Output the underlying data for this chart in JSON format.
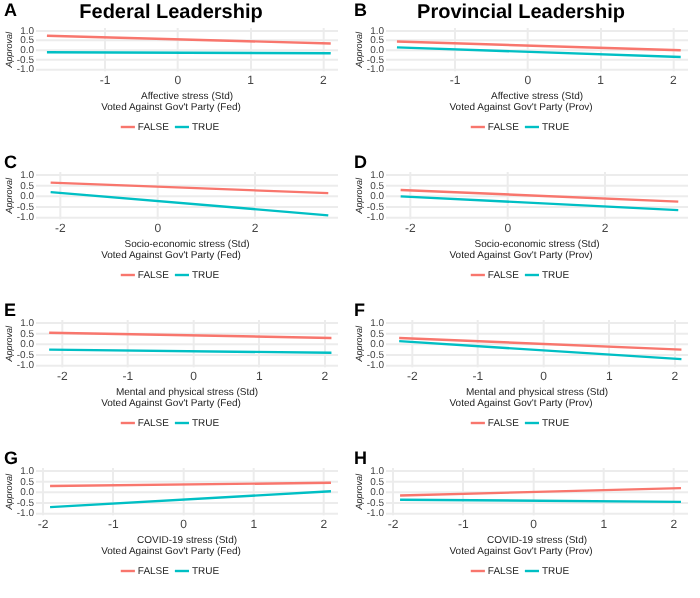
{
  "chart_data": [
    {
      "type": "line",
      "title": "Federal Leadership",
      "annotations": [
        "A"
      ],
      "xlabel": "Affective stress (Std)",
      "ylabel": "Approval",
      "legend_title": "Voted Against Gov't Party (Fed)",
      "legend": "bottom",
      "grid": true,
      "xlim": [
        -1.95,
        2.2
      ],
      "xticks": [
        -1,
        0,
        1,
        2
      ],
      "ylim": [
        -1.1,
        1.15
      ],
      "yticks": [
        {
          "value": -1,
          "label": "-1.0"
        },
        {
          "value": -0.5,
          "label": "-0.5"
        },
        {
          "value": 0,
          "label": "0.0"
        },
        {
          "value": 0.5,
          "label": "0.5"
        },
        {
          "value": 1,
          "label": "1.0"
        }
      ],
      "series": [
        {
          "name": "FALSE",
          "color": "#f8766d",
          "x": [
            -1.8,
            2.1
          ],
          "values": [
            0.75,
            0.35
          ]
        },
        {
          "name": "TRUE",
          "color": "#00bfc4",
          "x": [
            -1.8,
            2.1
          ],
          "values": [
            -0.1,
            -0.15
          ]
        }
      ]
    },
    {
      "type": "line",
      "title": "Provincial Leadership",
      "annotations": [
        "B"
      ],
      "xlabel": "Affective stress (Std)",
      "ylabel": "Approval",
      "legend_title": "Voted Against Gov't Party (Prov)",
      "legend": "bottom",
      "grid": true,
      "xlim": [
        -1.95,
        2.2
      ],
      "xticks": [
        -1,
        0,
        1,
        2
      ],
      "ylim": [
        -1.1,
        1.15
      ],
      "yticks": [
        {
          "value": -1,
          "label": "-1.0"
        },
        {
          "value": -0.5,
          "label": "-0.5"
        },
        {
          "value": 0,
          "label": "0.0"
        },
        {
          "value": 0.5,
          "label": "0.5"
        },
        {
          "value": 1,
          "label": "1.0"
        }
      ],
      "series": [
        {
          "name": "FALSE",
          "color": "#f8766d",
          "x": [
            -1.8,
            2.1
          ],
          "values": [
            0.45,
            0.0
          ]
        },
        {
          "name": "TRUE",
          "color": "#00bfc4",
          "x": [
            -1.8,
            2.1
          ],
          "values": [
            0.15,
            -0.35
          ]
        }
      ]
    },
    {
      "type": "line",
      "annotations": [
        "C"
      ],
      "xlabel": "Socio-economic stress (Std)",
      "ylabel": "Approval",
      "legend_title": "Voted Against Gov't Party (Fed)",
      "legend": "bottom",
      "grid": true,
      "xlim": [
        -2.5,
        3.7
      ],
      "xticks": [
        -2,
        0,
        2
      ],
      "ylim": [
        -1.1,
        1.15
      ],
      "yticks": [
        {
          "value": -1,
          "label": "-1.0"
        },
        {
          "value": -0.5,
          "label": "-0.5"
        },
        {
          "value": 0,
          "label": "0.0"
        },
        {
          "value": 0.5,
          "label": "0.5"
        },
        {
          "value": 1,
          "label": "1.0"
        }
      ],
      "series": [
        {
          "name": "FALSE",
          "color": "#f8766d",
          "x": [
            -2.2,
            3.5
          ],
          "values": [
            0.65,
            0.15
          ]
        },
        {
          "name": "TRUE",
          "color": "#00bfc4",
          "x": [
            -2.2,
            3.5
          ],
          "values": [
            0.2,
            -0.9
          ]
        }
      ]
    },
    {
      "type": "line",
      "annotations": [
        "D"
      ],
      "xlabel": "Socio-economic stress (Std)",
      "ylabel": "Approval",
      "legend_title": "Voted Against Gov't Party (Prov)",
      "legend": "bottom",
      "grid": true,
      "xlim": [
        -2.5,
        3.7
      ],
      "xticks": [
        -2,
        0,
        2
      ],
      "ylim": [
        -1.1,
        1.15
      ],
      "yticks": [
        {
          "value": -1,
          "label": "-1.0"
        },
        {
          "value": -0.5,
          "label": "-0.5"
        },
        {
          "value": 0,
          "label": "0.0"
        },
        {
          "value": 0.5,
          "label": "0.5"
        },
        {
          "value": 1,
          "label": "1.0"
        }
      ],
      "series": [
        {
          "name": "FALSE",
          "color": "#f8766d",
          "x": [
            -2.2,
            3.5
          ],
          "values": [
            0.3,
            -0.25
          ]
        },
        {
          "name": "TRUE",
          "color": "#00bfc4",
          "x": [
            -2.2,
            3.5
          ],
          "values": [
            0.0,
            -0.65
          ]
        }
      ]
    },
    {
      "type": "line",
      "annotations": [
        "E"
      ],
      "xlabel": "Mental and physical stress (Std)",
      "ylabel": "Approval",
      "legend_title": "Voted Against Gov't Party (Fed)",
      "legend": "bottom",
      "grid": true,
      "xlim": [
        -2.4,
        2.2
      ],
      "xticks": [
        -2,
        -1,
        0,
        1,
        2
      ],
      "ylim": [
        -1.1,
        1.15
      ],
      "yticks": [
        {
          "value": -1,
          "label": "-1.0"
        },
        {
          "value": -0.5,
          "label": "-0.5"
        },
        {
          "value": 0,
          "label": "0.0"
        },
        {
          "value": 0.5,
          "label": "0.5"
        },
        {
          "value": 1,
          "label": "1.0"
        }
      ],
      "series": [
        {
          "name": "FALSE",
          "color": "#f8766d",
          "x": [
            -2.2,
            2.1
          ],
          "values": [
            0.55,
            0.3
          ]
        },
        {
          "name": "TRUE",
          "color": "#00bfc4",
          "x": [
            -2.2,
            2.1
          ],
          "values": [
            -0.25,
            -0.4
          ]
        }
      ]
    },
    {
      "type": "line",
      "annotations": [
        "F"
      ],
      "xlabel": "Mental and physical stress (Std)",
      "ylabel": "Approval",
      "legend_title": "Voted Against Gov't Party (Prov)",
      "legend": "bottom",
      "grid": true,
      "xlim": [
        -2.4,
        2.2
      ],
      "xticks": [
        -2,
        -1,
        0,
        1,
        2
      ],
      "ylim": [
        -1.1,
        1.15
      ],
      "yticks": [
        {
          "value": -1,
          "label": "-1.0"
        },
        {
          "value": -0.5,
          "label": "-0.5"
        },
        {
          "value": 0,
          "label": "0.0"
        },
        {
          "value": 0.5,
          "label": "0.5"
        },
        {
          "value": 1,
          "label": "1.0"
        }
      ],
      "series": [
        {
          "name": "FALSE",
          "color": "#f8766d",
          "x": [
            -2.2,
            2.1
          ],
          "values": [
            0.3,
            -0.25
          ]
        },
        {
          "name": "TRUE",
          "color": "#00bfc4",
          "x": [
            -2.2,
            2.1
          ],
          "values": [
            0.15,
            -0.7
          ]
        }
      ]
    },
    {
      "type": "line",
      "annotations": [
        "G"
      ],
      "xlabel": "COVID-19 stress (Std)",
      "ylabel": "Approval",
      "legend_title": "Voted Against Gov't Party (Fed)",
      "legend": "bottom",
      "grid": true,
      "xlim": [
        -2.1,
        2.2
      ],
      "xticks": [
        -2,
        -1,
        0,
        1,
        2
      ],
      "ylim": [
        -1.1,
        1.15
      ],
      "yticks": [
        {
          "value": -1,
          "label": "-1.0"
        },
        {
          "value": -0.5,
          "label": "-0.5"
        },
        {
          "value": 0,
          "label": "0.0"
        },
        {
          "value": 0.5,
          "label": "0.5"
        },
        {
          "value": 1,
          "label": "1.0"
        }
      ],
      "series": [
        {
          "name": "FALSE",
          "color": "#f8766d",
          "x": [
            -1.9,
            2.1
          ],
          "values": [
            0.3,
            0.45
          ]
        },
        {
          "name": "TRUE",
          "color": "#00bfc4",
          "x": [
            -1.9,
            2.1
          ],
          "values": [
            -0.7,
            0.05
          ]
        }
      ]
    },
    {
      "type": "line",
      "annotations": [
        "H"
      ],
      "xlabel": "COVID-19 stress (Std)",
      "ylabel": "Approval",
      "legend_title": "Voted Against Gov't Party (Prov)",
      "legend": "bottom",
      "grid": true,
      "xlim": [
        -2.1,
        2.2
      ],
      "xticks": [
        -2,
        -1,
        0,
        1,
        2
      ],
      "ylim": [
        -1.1,
        1.15
      ],
      "yticks": [
        {
          "value": -1,
          "label": "-1.0"
        },
        {
          "value": -0.5,
          "label": "-0.5"
        },
        {
          "value": 0,
          "label": "0.0"
        },
        {
          "value": 0.5,
          "label": "0.5"
        },
        {
          "value": 1,
          "label": "1.0"
        }
      ],
      "series": [
        {
          "name": "FALSE",
          "color": "#f8766d",
          "x": [
            -1.9,
            2.1
          ],
          "values": [
            -0.15,
            0.2
          ]
        },
        {
          "name": "TRUE",
          "color": "#00bfc4",
          "x": [
            -1.9,
            2.1
          ],
          "values": [
            -0.35,
            -0.45
          ]
        }
      ]
    }
  ]
}
